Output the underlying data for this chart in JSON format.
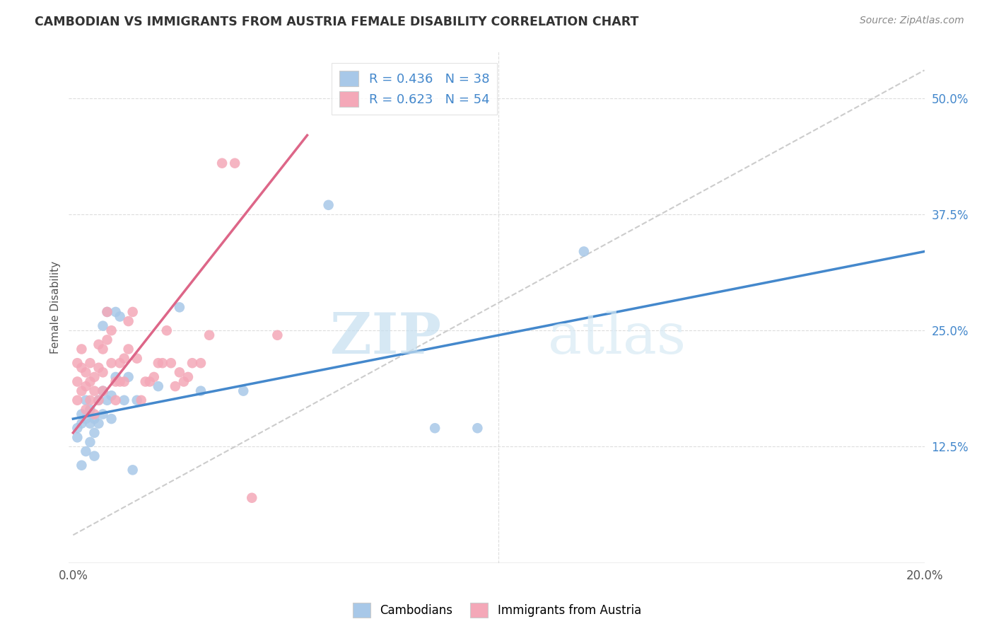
{
  "title": "CAMBODIAN VS IMMIGRANTS FROM AUSTRIA FEMALE DISABILITY CORRELATION CHART",
  "source": "Source: ZipAtlas.com",
  "ylabel": "Female Disability",
  "x_min": 0.0,
  "x_max": 0.2,
  "y_min": 0.0,
  "y_max": 0.55,
  "y_ticks_right": [
    0.125,
    0.25,
    0.375,
    0.5
  ],
  "y_tick_labels_right": [
    "12.5%",
    "25.0%",
    "37.5%",
    "50.0%"
  ],
  "legend_r1": "R = 0.436",
  "legend_n1": "N = 38",
  "legend_r2": "R = 0.623",
  "legend_n2": "N = 54",
  "color_blue": "#a8c8e8",
  "color_pink": "#f4a8b8",
  "color_blue_line": "#4488cc",
  "color_pink_line": "#dd6688",
  "color_diag": "#cccccc",
  "watermark_zip": "ZIP",
  "watermark_atlas": "atlas",
  "cambodian_x": [
    0.001,
    0.001,
    0.002,
    0.002,
    0.002,
    0.003,
    0.003,
    0.003,
    0.004,
    0.004,
    0.004,
    0.005,
    0.005,
    0.005,
    0.006,
    0.006,
    0.007,
    0.007,
    0.007,
    0.008,
    0.008,
    0.009,
    0.009,
    0.01,
    0.01,
    0.011,
    0.012,
    0.013,
    0.014,
    0.015,
    0.02,
    0.025,
    0.03,
    0.04,
    0.06,
    0.085,
    0.095,
    0.12
  ],
  "cambodian_y": [
    0.145,
    0.135,
    0.16,
    0.15,
    0.105,
    0.175,
    0.155,
    0.12,
    0.15,
    0.165,
    0.13,
    0.155,
    0.14,
    0.115,
    0.175,
    0.15,
    0.255,
    0.185,
    0.16,
    0.27,
    0.175,
    0.18,
    0.155,
    0.27,
    0.2,
    0.265,
    0.175,
    0.2,
    0.1,
    0.175,
    0.19,
    0.275,
    0.185,
    0.185,
    0.385,
    0.145,
    0.145,
    0.335
  ],
  "austria_x": [
    0.001,
    0.001,
    0.001,
    0.002,
    0.002,
    0.002,
    0.003,
    0.003,
    0.003,
    0.004,
    0.004,
    0.004,
    0.005,
    0.005,
    0.005,
    0.006,
    0.006,
    0.006,
    0.007,
    0.007,
    0.007,
    0.008,
    0.008,
    0.009,
    0.009,
    0.01,
    0.01,
    0.011,
    0.011,
    0.012,
    0.012,
    0.013,
    0.013,
    0.014,
    0.015,
    0.016,
    0.017,
    0.018,
    0.019,
    0.02,
    0.021,
    0.022,
    0.023,
    0.024,
    0.025,
    0.026,
    0.027,
    0.028,
    0.03,
    0.032,
    0.035,
    0.038,
    0.042,
    0.048
  ],
  "austria_y": [
    0.215,
    0.195,
    0.175,
    0.23,
    0.21,
    0.185,
    0.205,
    0.19,
    0.165,
    0.215,
    0.195,
    0.175,
    0.2,
    0.185,
    0.16,
    0.235,
    0.21,
    0.175,
    0.23,
    0.205,
    0.185,
    0.27,
    0.24,
    0.25,
    0.215,
    0.195,
    0.175,
    0.215,
    0.195,
    0.22,
    0.195,
    0.26,
    0.23,
    0.27,
    0.22,
    0.175,
    0.195,
    0.195,
    0.2,
    0.215,
    0.215,
    0.25,
    0.215,
    0.19,
    0.205,
    0.195,
    0.2,
    0.215,
    0.215,
    0.245,
    0.43,
    0.43,
    0.07,
    0.245
  ]
}
